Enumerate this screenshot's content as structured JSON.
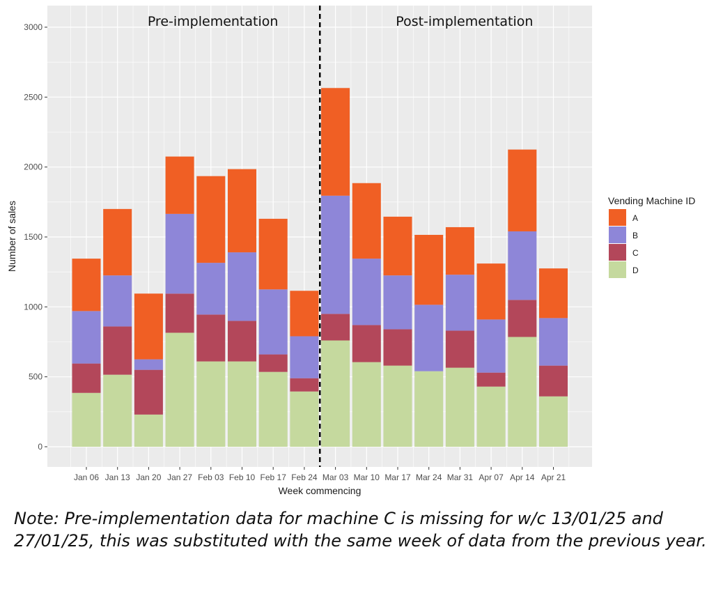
{
  "chart_data": {
    "type": "bar",
    "stacked": true,
    "xlabel": "Week commencing",
    "ylabel": "Number of sales",
    "ylim": [
      0,
      3000
    ],
    "yticks": [
      0,
      500,
      1000,
      1500,
      2000,
      2500,
      3000
    ],
    "grid": true,
    "legend": {
      "title": "Vending Machine ID",
      "position": "right"
    },
    "categories": [
      "Jan 06",
      "Jan 13",
      "Jan 20",
      "Jan 27",
      "Feb 03",
      "Feb 10",
      "Feb 17",
      "Feb 24",
      "Mar 03",
      "Mar 10",
      "Mar 17",
      "Mar 24",
      "Mar 31",
      "Apr 07",
      "Apr 14",
      "Apr 21"
    ],
    "series": [
      {
        "name": "D",
        "color": "#c5d99e",
        "values": [
          385,
          515,
          230,
          815,
          610,
          610,
          535,
          395,
          760,
          605,
          580,
          540,
          565,
          430,
          785,
          360
        ]
      },
      {
        "name": "C",
        "color": "#b3475a",
        "values": [
          210,
          345,
          320,
          280,
          335,
          290,
          125,
          95,
          190,
          265,
          260,
          0,
          265,
          100,
          265,
          220
        ]
      },
      {
        "name": "B",
        "color": "#8e86d8",
        "values": [
          375,
          365,
          75,
          570,
          370,
          490,
          465,
          300,
          845,
          475,
          385,
          475,
          400,
          380,
          490,
          340
        ]
      },
      {
        "name": "A",
        "color": "#f05f24",
        "values": [
          375,
          475,
          470,
          410,
          620,
          595,
          505,
          325,
          770,
          540,
          420,
          500,
          340,
          400,
          585,
          355
        ]
      }
    ],
    "annotations": {
      "divider_after_category": "Feb 24",
      "left_label": "Pre-implementation",
      "right_label": "Post-implementation"
    }
  },
  "note": "Note: Pre-implementation data for machine C is missing for w/c 13/01/25 and 27/01/25, this was substituted with the same week of data from the previous year."
}
